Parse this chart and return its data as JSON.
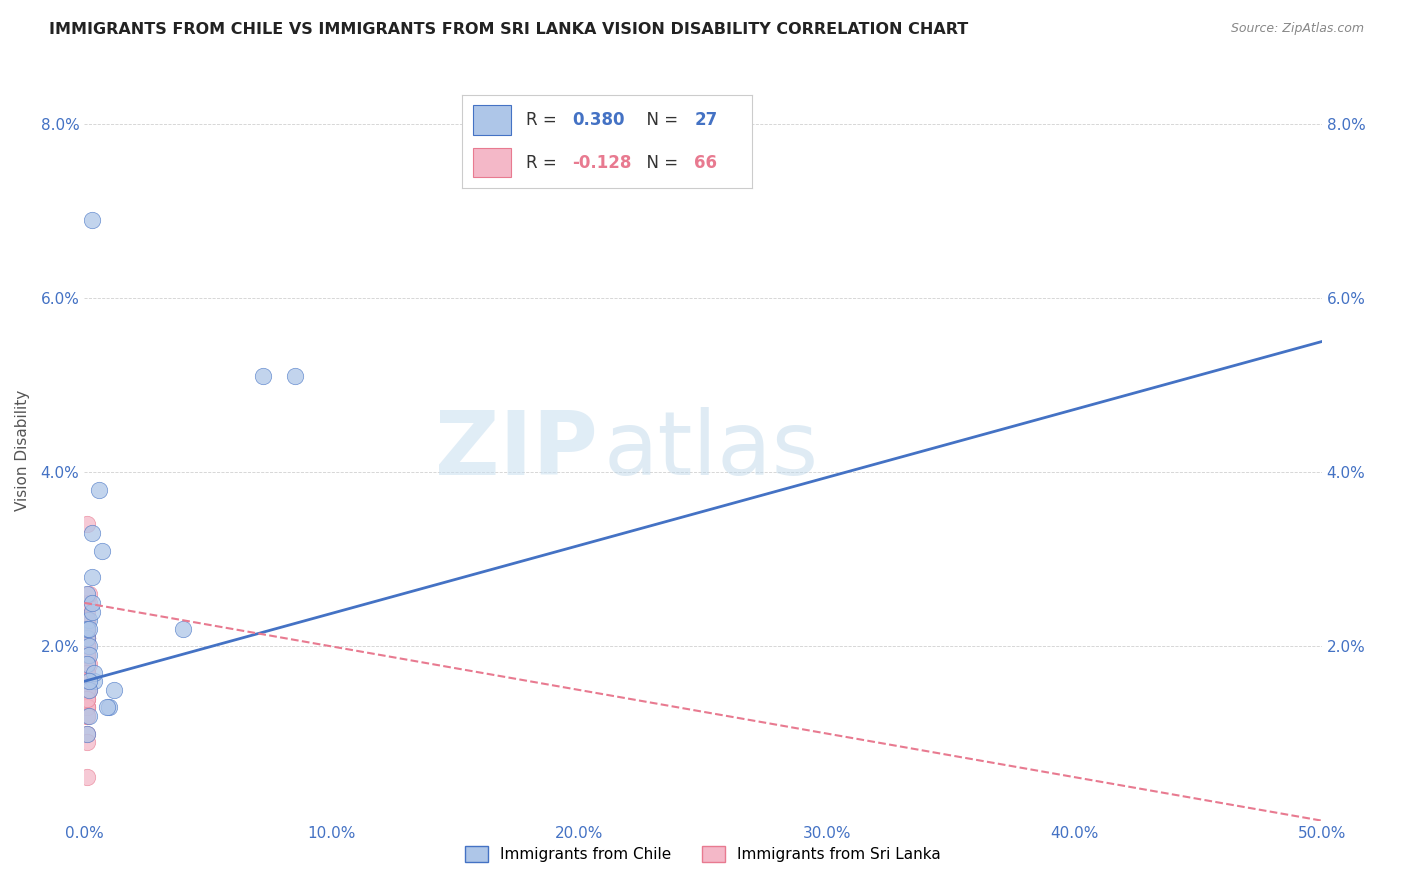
{
  "title": "IMMIGRANTS FROM CHILE VS IMMIGRANTS FROM SRI LANKA VISION DISABILITY CORRELATION CHART",
  "source": "Source: ZipAtlas.com",
  "ylabel": "Vision Disability",
  "xlim": [
    0.0,
    0.5
  ],
  "ylim": [
    0.0,
    0.085
  ],
  "xticks": [
    0.0,
    0.1,
    0.2,
    0.3,
    0.4,
    0.5
  ],
  "xticklabels": [
    "0.0%",
    "10.0%",
    "20.0%",
    "30.0%",
    "40.0%",
    "50.0%"
  ],
  "yticks": [
    0.0,
    0.02,
    0.04,
    0.06,
    0.08
  ],
  "yticklabels_left": [
    "",
    "2.0%",
    "4.0%",
    "6.0%",
    "8.0%"
  ],
  "yticklabels_right": [
    "",
    "2.0%",
    "4.0%",
    "6.0%",
    "8.0%"
  ],
  "chile_R": 0.38,
  "chile_N": 27,
  "srilanka_R": -0.128,
  "srilanka_N": 66,
  "chile_color": "#aec6e8",
  "srilanka_color": "#f4b8c8",
  "chile_line_color": "#4472c4",
  "srilanka_line_color": "#e87a90",
  "watermark_zip": "ZIP",
  "watermark_atlas": "atlas",
  "background_color": "#ffffff",
  "chile_scatter_x": [
    0.006,
    0.003,
    0.002,
    0.001,
    0.003,
    0.002,
    0.001,
    0.002,
    0.002,
    0.001,
    0.001,
    0.004,
    0.003,
    0.007,
    0.002,
    0.004,
    0.002,
    0.01,
    0.009,
    0.003,
    0.003,
    0.012,
    0.072,
    0.04,
    0.085,
    0.002,
    0.001
  ],
  "chile_scatter_y": [
    0.038,
    0.033,
    0.023,
    0.021,
    0.028,
    0.02,
    0.022,
    0.019,
    0.022,
    0.026,
    0.018,
    0.016,
    0.024,
    0.031,
    0.015,
    0.017,
    0.016,
    0.013,
    0.013,
    0.069,
    0.025,
    0.015,
    0.051,
    0.022,
    0.051,
    0.012,
    0.01
  ],
  "srilanka_scatter_x": [
    0.001,
    0.001,
    0.001,
    0.001,
    0.001,
    0.001,
    0.001,
    0.001,
    0.001,
    0.001,
    0.001,
    0.001,
    0.001,
    0.001,
    0.001,
    0.001,
    0.001,
    0.001,
    0.001,
    0.001,
    0.001,
    0.001,
    0.001,
    0.001,
    0.001,
    0.001,
    0.001,
    0.001,
    0.001,
    0.001,
    0.002,
    0.001,
    0.001,
    0.001,
    0.001,
    0.001,
    0.001,
    0.001,
    0.001,
    0.001,
    0.001,
    0.001,
    0.001,
    0.001,
    0.001,
    0.001,
    0.001,
    0.001,
    0.001,
    0.001,
    0.002,
    0.001,
    0.002,
    0.001,
    0.001,
    0.002,
    0.001,
    0.001,
    0.001,
    0.001,
    0.001,
    0.001,
    0.001,
    0.001,
    0.001,
    0.001
  ],
  "srilanka_scatter_y": [
    0.024,
    0.021,
    0.034,
    0.018,
    0.015,
    0.022,
    0.021,
    0.019,
    0.023,
    0.02,
    0.017,
    0.025,
    0.014,
    0.019,
    0.022,
    0.02,
    0.016,
    0.013,
    0.018,
    0.023,
    0.021,
    0.015,
    0.02,
    0.022,
    0.019,
    0.017,
    0.014,
    0.021,
    0.018,
    0.013,
    0.025,
    0.022,
    0.016,
    0.02,
    0.023,
    0.018,
    0.012,
    0.021,
    0.017,
    0.019,
    0.015,
    0.013,
    0.022,
    0.016,
    0.02,
    0.023,
    0.018,
    0.012,
    0.021,
    0.017,
    0.026,
    0.019,
    0.015,
    0.02,
    0.01,
    0.018,
    0.017,
    0.023,
    0.015,
    0.022,
    0.016,
    0.019,
    0.022,
    0.014,
    0.005,
    0.009
  ],
  "chile_line_x0": 0.0,
  "chile_line_y0": 0.016,
  "chile_line_x1": 0.5,
  "chile_line_y1": 0.055,
  "srilanka_line_x0": 0.0,
  "srilanka_line_y0": 0.025,
  "srilanka_line_x1": 0.5,
  "srilanka_line_y1": 0.0
}
